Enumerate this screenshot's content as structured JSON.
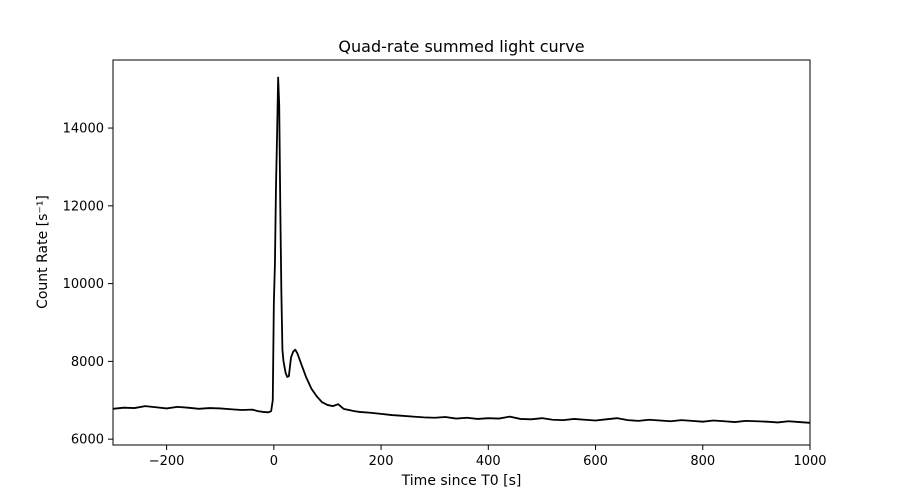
{
  "chart_data": {
    "type": "line",
    "title": "Quad-rate summed light curve",
    "xlabel": "Time since T0 [s]",
    "ylabel": "Count Rate [s⁻¹]",
    "xlim": [
      -300,
      1000
    ],
    "ylim": [
      5850,
      15750
    ],
    "xticks": [
      -200,
      0,
      200,
      400,
      600,
      800,
      1000
    ],
    "yticks": [
      6000,
      8000,
      10000,
      12000,
      14000
    ],
    "grid": false,
    "line_color": "#000000",
    "series": [
      {
        "x": [
          -300,
          -280,
          -260,
          -240,
          -220,
          -200,
          -180,
          -160,
          -140,
          -120,
          -100,
          -80,
          -60,
          -40,
          -30,
          -20,
          -10,
          -5,
          -2,
          0,
          2,
          4,
          6,
          8,
          10,
          12,
          14,
          16,
          18,
          20,
          22,
          25,
          28,
          32,
          36,
          40,
          44,
          48,
          52,
          56,
          60,
          65,
          70,
          80,
          90,
          100,
          110,
          120,
          130,
          140,
          150,
          160,
          180,
          200,
          220,
          240,
          260,
          280,
          300,
          320,
          340,
          360,
          380,
          400,
          420,
          440,
          460,
          480,
          500,
          520,
          540,
          560,
          580,
          600,
          620,
          640,
          660,
          680,
          700,
          720,
          740,
          760,
          780,
          800,
          820,
          840,
          860,
          880,
          900,
          920,
          940,
          960,
          980,
          1000
        ],
        "y": [
          6780,
          6810,
          6800,
          6850,
          6820,
          6790,
          6830,
          6810,
          6780,
          6800,
          6790,
          6770,
          6750,
          6760,
          6720,
          6700,
          6690,
          6720,
          7000,
          9500,
          10500,
          12500,
          13800,
          15300,
          14600,
          12000,
          9800,
          8300,
          8000,
          7850,
          7700,
          7600,
          7620,
          8100,
          8250,
          8300,
          8200,
          8050,
          7900,
          7750,
          7600,
          7450,
          7300,
          7100,
          6950,
          6880,
          6850,
          6900,
          6780,
          6750,
          6720,
          6700,
          6680,
          6650,
          6620,
          6600,
          6580,
          6560,
          6550,
          6570,
          6530,
          6550,
          6520,
          6540,
          6530,
          6580,
          6520,
          6510,
          6540,
          6500,
          6490,
          6520,
          6500,
          6480,
          6510,
          6540,
          6490,
          6470,
          6500,
          6480,
          6460,
          6490,
          6470,
          6450,
          6480,
          6460,
          6440,
          6470,
          6460,
          6450,
          6430,
          6460,
          6440,
          6420
        ]
      }
    ]
  }
}
